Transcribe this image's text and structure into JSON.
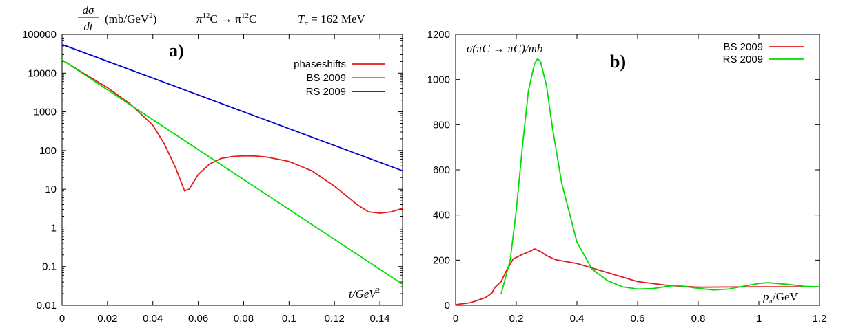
{
  "chart_data": [
    {
      "panel": "a)",
      "type": "line",
      "title": "dσ/dt  (mb/GeV²)   π¹²C → π¹²C    T_π = 162 MeV",
      "title_parts": {
        "fraction_num": "dσ",
        "fraction_den": "dt",
        "units": "(mb/GeV",
        "units_sup": "2",
        "units_end": ")",
        "reaction_a": "π",
        "reaction_sup1": "12",
        "reaction_b": "C → π",
        "reaction_sup2": "12",
        "reaction_c": "C",
        "energy": "T",
        "energy_sub": "π",
        "energy_val": " = 162 MeV"
      },
      "xlabel": "t/GeV",
      "xlabel_sup": "2",
      "ylabel": "",
      "xlim": [
        0,
        0.15
      ],
      "ylim": [
        0.01,
        100000
      ],
      "y_scale": "log",
      "grid": false,
      "legend_position": "top-right",
      "x_ticks": [
        "0",
        "0.02",
        "0.04",
        "0.06",
        "0.08",
        "0.1",
        "0.12",
        "0.14"
      ],
      "x_tick_values": [
        0,
        0.02,
        0.04,
        0.06,
        0.08,
        0.1,
        0.12,
        0.14
      ],
      "y_ticks": [
        "0.01",
        "0.1",
        "1",
        "10",
        "100",
        "1000",
        "10000",
        "100000"
      ],
      "y_tick_values": [
        0.01,
        0.1,
        1,
        10,
        100,
        1000,
        10000,
        100000
      ],
      "series": [
        {
          "name": "phaseshifts",
          "color": "#e41a1c",
          "points": [
            [
              0,
              22000
            ],
            [
              0.01,
              9500
            ],
            [
              0.02,
              4200
            ],
            [
              0.03,
              1600
            ],
            [
              0.04,
              450
            ],
            [
              0.045,
              150
            ],
            [
              0.05,
              36
            ],
            [
              0.054,
              9
            ],
            [
              0.056,
              10
            ],
            [
              0.06,
              24
            ],
            [
              0.065,
              45
            ],
            [
              0.07,
              62
            ],
            [
              0.075,
              70
            ],
            [
              0.08,
              73
            ],
            [
              0.085,
              72
            ],
            [
              0.09,
              68
            ],
            [
              0.1,
              52
            ],
            [
              0.11,
              30
            ],
            [
              0.12,
              12
            ],
            [
              0.13,
              4
            ],
            [
              0.135,
              2.6
            ],
            [
              0.14,
              2.4
            ],
            [
              0.145,
              2.6
            ],
            [
              0.15,
              3.2
            ]
          ]
        },
        {
          "name": "BS 2009",
          "color": "#00dd00",
          "points": [
            [
              0,
              22000
            ],
            [
              0.15,
              0.035
            ]
          ]
        },
        {
          "name": "RS 2009",
          "color": "#0000cc",
          "points": [
            [
              0,
              55000
            ],
            [
              0.15,
              30
            ]
          ]
        }
      ]
    },
    {
      "panel": "b)",
      "type": "line",
      "title": "σ(πC → πC)/mb",
      "title_parts": {
        "sigma": "σ(πC → πC)/mb"
      },
      "xlabel": "p",
      "xlabel_sub": "π",
      "xlabel_end": "/GeV",
      "ylabel": "",
      "xlim": [
        0,
        1.2
      ],
      "ylim": [
        0,
        1200
      ],
      "y_scale": "linear",
      "grid": false,
      "legend_position": "top-right",
      "x_ticks": [
        "0",
        "0.2",
        "0.4",
        "0.6",
        "0.8",
        "1",
        "1.2"
      ],
      "x_tick_values": [
        0,
        0.2,
        0.4,
        0.6,
        0.8,
        1,
        1.2
      ],
      "y_ticks": [
        "0",
        "200",
        "400",
        "600",
        "800",
        "1000",
        "1200"
      ],
      "y_tick_values": [
        0,
        200,
        400,
        600,
        800,
        1000,
        1200
      ],
      "series": [
        {
          "name": "BS 2009",
          "color": "#e41a1c",
          "points": [
            [
              0,
              3
            ],
            [
              0.05,
              12
            ],
            [
              0.1,
              35
            ],
            [
              0.12,
              55
            ],
            [
              0.13,
              80
            ],
            [
              0.15,
              105
            ],
            [
              0.17,
              160
            ],
            [
              0.19,
              205
            ],
            [
              0.22,
              225
            ],
            [
              0.25,
              242
            ],
            [
              0.26,
              250
            ],
            [
              0.28,
              238
            ],
            [
              0.3,
              220
            ],
            [
              0.33,
              202
            ],
            [
              0.4,
              185
            ],
            [
              0.5,
              145
            ],
            [
              0.6,
              105
            ],
            [
              0.7,
              88
            ],
            [
              0.8,
              80
            ],
            [
              0.9,
              81
            ],
            [
              1.0,
              82
            ],
            [
              1.1,
              82
            ],
            [
              1.2,
              82
            ]
          ]
        },
        {
          "name": "RS 2009",
          "color": "#00dd00",
          "points": [
            [
              0.15,
              50
            ],
            [
              0.18,
              200
            ],
            [
              0.2,
              420
            ],
            [
              0.22,
              700
            ],
            [
              0.24,
              950
            ],
            [
              0.26,
              1070
            ],
            [
              0.27,
              1092
            ],
            [
              0.28,
              1080
            ],
            [
              0.3,
              970
            ],
            [
              0.32,
              780
            ],
            [
              0.35,
              540
            ],
            [
              0.4,
              280
            ],
            [
              0.45,
              160
            ],
            [
              0.5,
              110
            ],
            [
              0.55,
              82
            ],
            [
              0.6,
              72
            ],
            [
              0.65,
              74
            ],
            [
              0.7,
              84
            ],
            [
              0.73,
              88
            ],
            [
              0.8,
              75
            ],
            [
              0.85,
              68
            ],
            [
              0.9,
              72
            ],
            [
              0.95,
              85
            ],
            [
              1.0,
              97
            ],
            [
              1.03,
              100
            ],
            [
              1.1,
              92
            ],
            [
              1.15,
              84
            ],
            [
              1.2,
              82
            ]
          ]
        }
      ]
    }
  ]
}
